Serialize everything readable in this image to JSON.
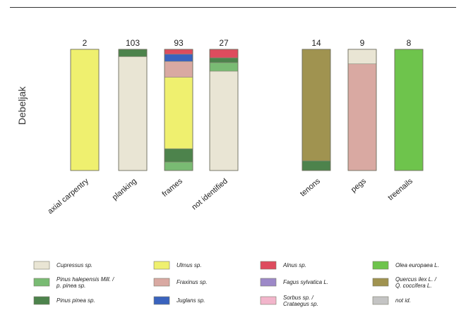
{
  "chart_data": {
    "type": "bar",
    "stacked": true,
    "normalized": true,
    "ylabel": "Debeljak",
    "groups": [
      {
        "categories": [
          "axial carpentry",
          "planking",
          "frames",
          "not identified"
        ]
      },
      {
        "categories": [
          "tenons",
          "pegs",
          "treenails"
        ]
      }
    ],
    "categories": [
      "axial carpentry",
      "planking",
      "frames",
      "not identified",
      "tenons",
      "pegs",
      "treenails"
    ],
    "counts": [
      "2",
      "103",
      "93",
      "27",
      "14",
      "9",
      "8"
    ],
    "series": [
      {
        "key": "cupressus",
        "color": "#e9e5d4",
        "values": [
          0,
          94,
          0,
          82,
          0,
          0,
          0
        ]
      },
      {
        "key": "pinus_hal",
        "color": "#79bb73",
        "values": [
          0,
          0,
          7,
          7,
          0,
          0,
          0
        ]
      },
      {
        "key": "pinus_pinea",
        "color": "#4d834c",
        "values": [
          0,
          6,
          11,
          4,
          8,
          0,
          0
        ]
      },
      {
        "key": "ulmus",
        "color": "#eff06f",
        "values": [
          100,
          0,
          59,
          0,
          0,
          0,
          0
        ]
      },
      {
        "key": "fraxinus",
        "color": "#d9a9a2",
        "values": [
          0,
          0,
          13,
          0,
          0,
          88,
          0
        ]
      },
      {
        "key": "juglans",
        "color": "#3a63be",
        "values": [
          0,
          0,
          6,
          0,
          0,
          0,
          0
        ]
      },
      {
        "key": "alnus",
        "color": "#de4c5e",
        "values": [
          0,
          0,
          4,
          7,
          0,
          0,
          0
        ]
      },
      {
        "key": "olea",
        "color": "#6ec44c",
        "values": [
          0,
          0,
          0,
          0,
          0,
          0,
          100
        ]
      },
      {
        "key": "quercus",
        "color": "#a09350",
        "values": [
          0,
          0,
          0,
          0,
          92,
          0,
          0
        ]
      },
      {
        "key": "pegs_light",
        "color": "#e9e5d4",
        "values": [
          0,
          0,
          0,
          0,
          0,
          12,
          0
        ]
      }
    ],
    "legend": [
      {
        "color": "#e9e5d4",
        "label": "Cupressus sp."
      },
      {
        "color": "#79bb73",
        "label": "Pinus halepensis Mill. / p. pinea sp."
      },
      {
        "color": "#4d834c",
        "label": "Pinus pinea sp."
      },
      {
        "color": "#eff06f",
        "label": "Ulmus sp."
      },
      {
        "color": "#d9a9a2",
        "label": "Fraxinus sp."
      },
      {
        "color": "#3a63be",
        "label": "Juglans sp."
      },
      {
        "color": "#de4c5e",
        "label": "Alnus sp."
      },
      {
        "color": "#9d89c8",
        "label": "Fagus sylvatica L."
      },
      {
        "color": "#f2b5cb",
        "label": "Sorbus sp. / Crataegus sp."
      },
      {
        "color": "#6ec44c",
        "label": "Olea europaea L."
      },
      {
        "color": "#a09350",
        "label": "Quercus ilex L. / Q. coccifera L."
      },
      {
        "color": "#c4c4c4",
        "label": "not id."
      }
    ]
  }
}
